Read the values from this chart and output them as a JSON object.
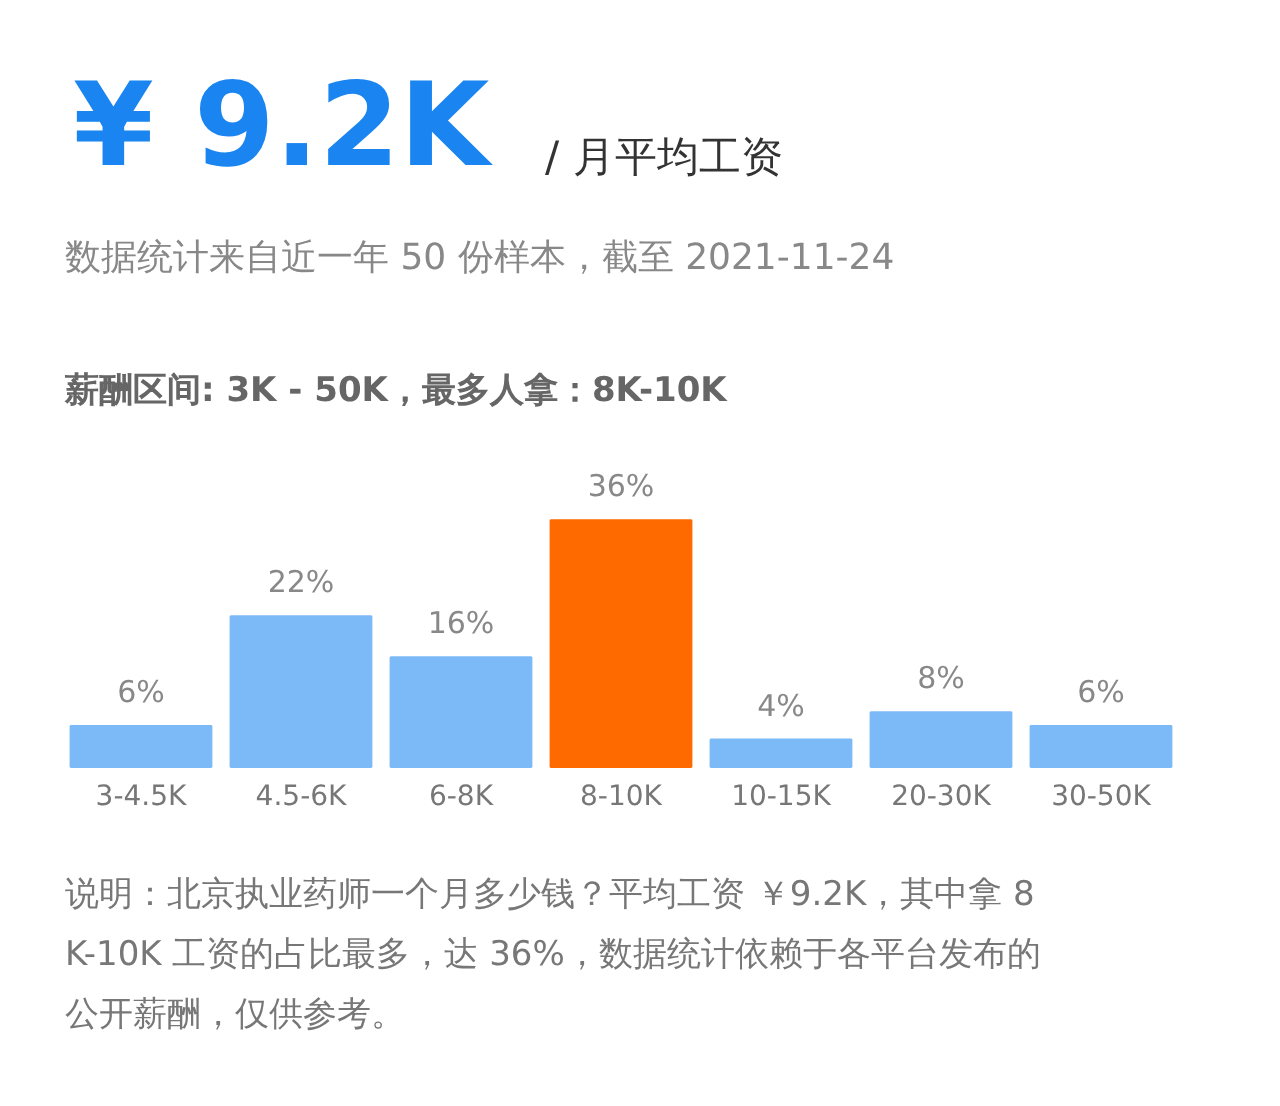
{
  "chart_data": {
    "type": "bar",
    "title": "¥ 9.2K",
    "subtitle": "/ 月平均工资",
    "annotations": [
      "数据统计来自近一年 50 份样本，截至 2021-11-24",
      "薪酬区间: 3K - 50K，最多人拿：8K-10K",
      "说明：北京执业药师一个月多少钱？平均工资 ￥9.2K，其中拿 8K-10K 工资的占比最多，达 36%，数据统计依赖于各平台发布的公开薪酬，仅供参考。"
    ],
    "categories": [
      "3-4.5K",
      "4.5-6K",
      "6-8K",
      "8-10K",
      "10-15K",
      "20-30K",
      "30-50K"
    ],
    "values": [
      6,
      22,
      16,
      36,
      4,
      8,
      6
    ],
    "colors": [
      "#7cb9f7",
      "#7cb9f7",
      "#7cb9f7",
      "#ff6a00",
      "#7cb9f7",
      "#7cb9f7",
      "#7cb9f7"
    ],
    "value_labels": [
      "6%",
      "22%",
      "16%",
      "36%",
      "4%",
      "8%",
      "6%"
    ],
    "grid": false
  }
}
